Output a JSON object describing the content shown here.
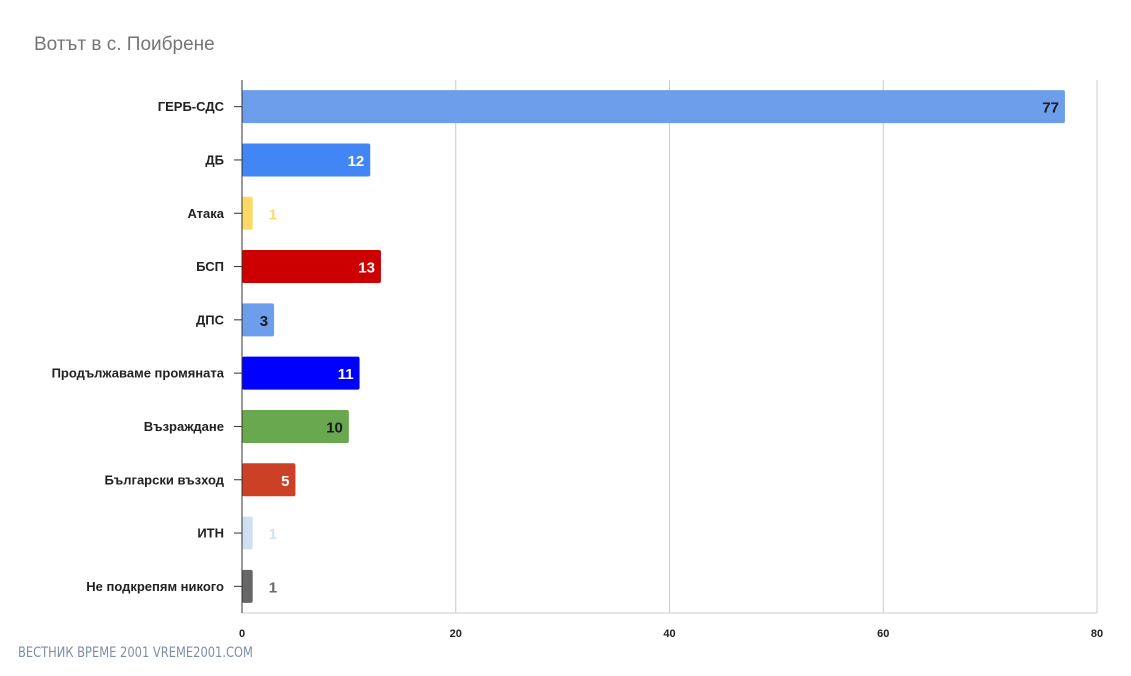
{
  "chart_data": {
    "type": "bar",
    "orientation": "horizontal",
    "title": "Вотът в с. Поибрене",
    "categories": [
      "ГЕРБ-СДС",
      "ДБ",
      "Атака",
      "БСП",
      "ДПС",
      "Продължаваме промяната",
      "Възраждане",
      "Български възход",
      "ИТН",
      "Не подкрепям никого"
    ],
    "values": [
      77,
      12,
      1,
      13,
      3,
      11,
      10,
      5,
      1,
      1
    ],
    "colors": [
      "#6d9eeb",
      "#4285f4",
      "#ffd966",
      "#cc0000",
      "#6d9eeb",
      "#0000ff",
      "#6aa84f",
      "#cc4125",
      "#d0e0f3",
      "#666666"
    ],
    "label_colors": [
      "#1a1a1a",
      "#ffffff",
      "#ffd966",
      "#ffffff",
      "#1a1a1a",
      "#ffffff",
      "#1a1a1a",
      "#ffffff",
      "#d0e0f3",
      "#666666"
    ],
    "xlim": [
      0,
      80
    ],
    "xticks": [
      0,
      20,
      40,
      60,
      80
    ],
    "grid": true,
    "legend": "none"
  },
  "watermark": "ВЕСТНИК ВРЕМЕ 2001  VREME2001.COM"
}
